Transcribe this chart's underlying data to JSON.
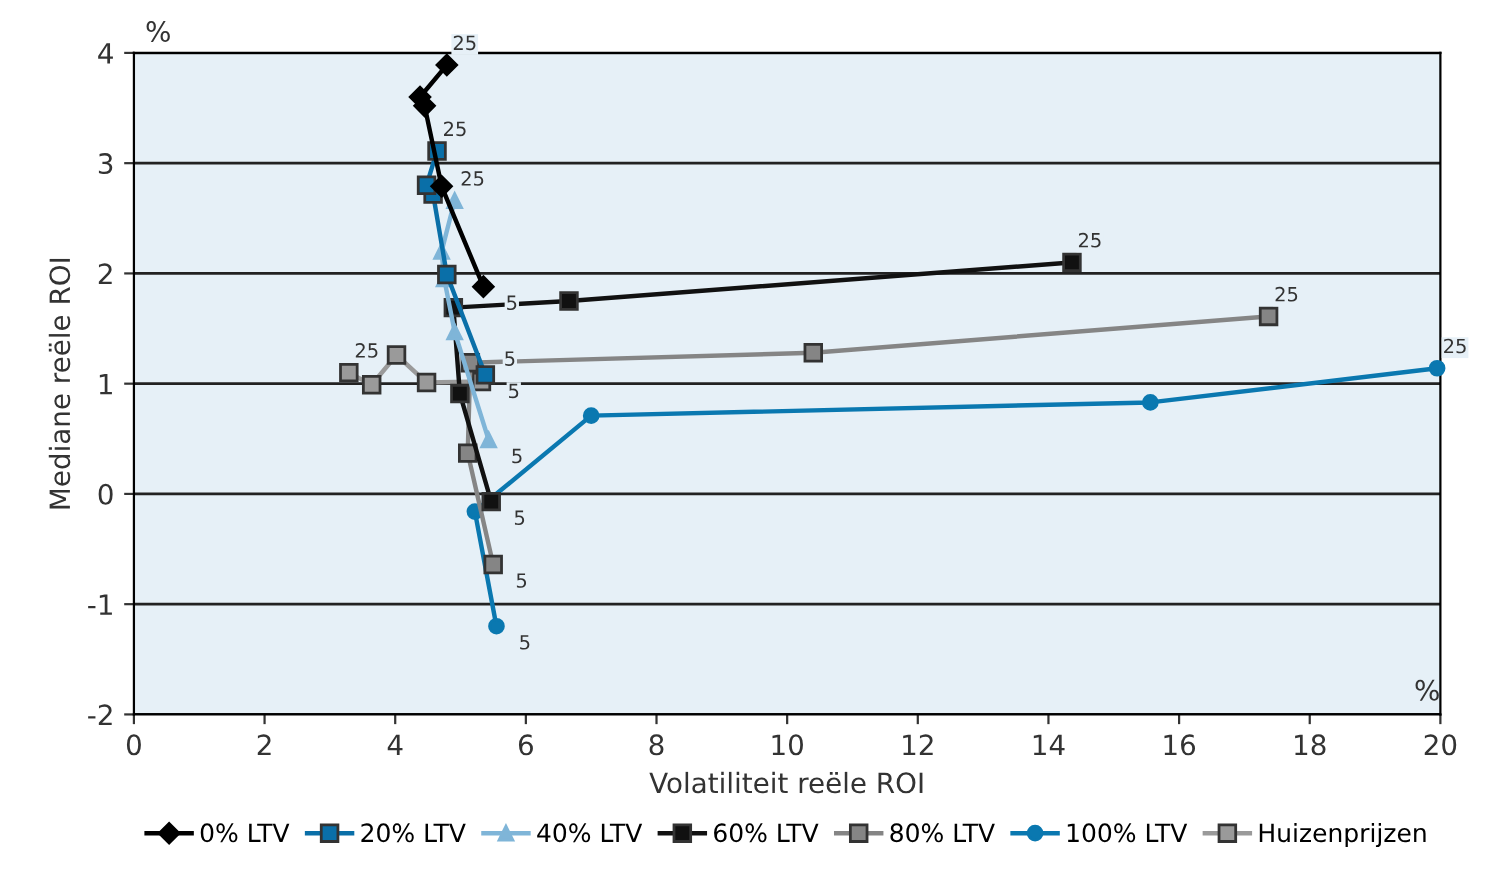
{
  "chart_data": {
    "type": "line",
    "xlabel": "Volatiliteit reële ROI",
    "ylabel": "Mediane reële ROI",
    "xlim": [
      0,
      20
    ],
    "xticks": [
      0,
      2,
      4,
      6,
      8,
      10,
      12,
      14,
      16,
      18,
      20
    ],
    "ylim": [
      -2,
      4
    ],
    "yticks": [
      -2,
      -1,
      0,
      1,
      2,
      3,
      4
    ],
    "grid": "y",
    "legend": "bottom",
    "series": [
      {
        "name": "0% LTV",
        "color": "#000000",
        "marker": "diamond",
        "x": [
          5.35,
          4.71,
          4.45,
          4.38,
          4.79
        ],
        "values": [
          1.88,
          2.79,
          3.52,
          3.6,
          3.89
        ]
      },
      {
        "name": "20% LTV",
        "color": "#0a6fa8",
        "marker": "square",
        "x": [
          5.38,
          4.79,
          4.58,
          4.48,
          4.64
        ],
        "values": [
          1.08,
          1.99,
          2.72,
          2.8,
          3.11
        ]
      },
      {
        "name": "40% LTV",
        "color": "#7fb5d8",
        "marker": "triangle",
        "x": [
          5.43,
          4.91,
          4.75,
          4.71,
          4.91
        ],
        "values": [
          0.49,
          1.47,
          1.95,
          2.2,
          2.66
        ]
      },
      {
        "name": "60% LTV",
        "color": "#111111",
        "marker": "square",
        "x": [
          5.47,
          4.99,
          4.89,
          6.66,
          14.36
        ],
        "values": [
          -0.07,
          0.91,
          1.69,
          1.75,
          2.1
        ]
      },
      {
        "name": "80% LTV",
        "color": "#858585",
        "marker": "square",
        "x": [
          5.5,
          5.11,
          5.15,
          10.4,
          17.37
        ],
        "values": [
          -0.64,
          0.37,
          1.19,
          1.28,
          1.61
        ]
      },
      {
        "name": "100% LTV",
        "color": "#0a78b0",
        "marker": "circle",
        "x": [
          5.55,
          5.22,
          7.0,
          15.56,
          19.95
        ],
        "values": [
          -1.2,
          -0.16,
          0.71,
          0.83,
          1.14
        ]
      },
      {
        "name": "Huizenprijzen",
        "color": "#9a9a9a",
        "marker": "square",
        "x": [
          5.32,
          4.48,
          4.02,
          3.64,
          3.29
        ],
        "values": [
          1.02,
          1.01,
          1.26,
          0.99,
          1.1
        ]
      }
    ],
    "annotations": [
      {
        "text": "25",
        "x": 4.79,
        "y": 3.89
      },
      {
        "text": "5",
        "x": 5.35,
        "y": 1.88
      },
      {
        "text": "25",
        "x": 4.64,
        "y": 3.11
      },
      {
        "text": "5",
        "x": 5.38,
        "y": 1.08
      },
      {
        "text": "25",
        "x": 4.91,
        "y": 2.66
      },
      {
        "text": "5",
        "x": 5.43,
        "y": 0.49
      },
      {
        "text": "25",
        "x": 14.36,
        "y": 2.1
      },
      {
        "text": "5",
        "x": 5.47,
        "y": -0.07
      },
      {
        "text": "25",
        "x": 17.37,
        "y": 1.61
      },
      {
        "text": "5",
        "x": 5.5,
        "y": -0.64
      },
      {
        "text": "25",
        "x": 19.95,
        "y": 1.14
      },
      {
        "text": "5",
        "x": 5.55,
        "y": -1.2
      },
      {
        "text": "25",
        "x": 3.29,
        "y": 1.1
      },
      {
        "text": "5",
        "x": 5.32,
        "y": 1.02
      },
      "%",
      "%"
    ]
  }
}
